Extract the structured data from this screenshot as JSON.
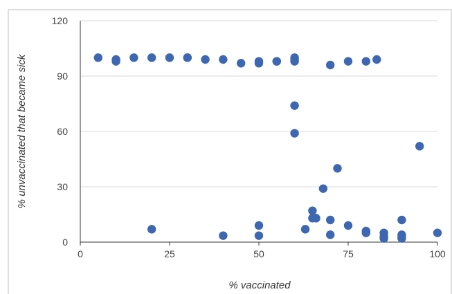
{
  "chart_data": {
    "type": "scatter",
    "title": "",
    "xlabel": "% vaccinated",
    "ylabel": "% unvaccinated that became sick",
    "xlim": [
      0,
      100
    ],
    "ylim": [
      0,
      120
    ],
    "x_ticks": [
      0,
      25,
      50,
      75,
      100
    ],
    "y_ticks": [
      0,
      30,
      60,
      90,
      120
    ],
    "x_tick_labels": [
      "0",
      "25",
      "50",
      "75",
      "100"
    ],
    "y_tick_labels": [
      "0",
      "30",
      "60",
      "90",
      "120"
    ],
    "grid": "horizontal",
    "legend": "none",
    "marker_color": "#3d67b1",
    "series": [
      {
        "points": [
          [
            5,
            100
          ],
          [
            10,
            99
          ],
          [
            10,
            98
          ],
          [
            15,
            100
          ],
          [
            20,
            100
          ],
          [
            25,
            100
          ],
          [
            30,
            100
          ],
          [
            30,
            100
          ],
          [
            35,
            99
          ],
          [
            40,
            99
          ],
          [
            45,
            97
          ],
          [
            50,
            98
          ],
          [
            50,
            97
          ],
          [
            55,
            98
          ],
          [
            55,
            98
          ],
          [
            60,
            100
          ],
          [
            60,
            99
          ],
          [
            60,
            98
          ],
          [
            70,
            96
          ],
          [
            75,
            98
          ],
          [
            80,
            98
          ],
          [
            83,
            99
          ],
          [
            60,
            74
          ],
          [
            60,
            59
          ],
          [
            95,
            52
          ],
          [
            72,
            40
          ],
          [
            68,
            29
          ],
          [
            65,
            17
          ],
          [
            65,
            13
          ],
          [
            66,
            13
          ],
          [
            70,
            12
          ],
          [
            90,
            12
          ],
          [
            75,
            9
          ],
          [
            63,
            7
          ],
          [
            20,
            7
          ],
          [
            50,
            9
          ],
          [
            80,
            6
          ],
          [
            80,
            5
          ],
          [
            85,
            5
          ],
          [
            40,
            3.5
          ],
          [
            50,
            3.5
          ],
          [
            70,
            4
          ],
          [
            85,
            3
          ],
          [
            85,
            2
          ],
          [
            90,
            4
          ],
          [
            90,
            3
          ],
          [
            90,
            2
          ],
          [
            100,
            5
          ]
        ]
      }
    ]
  }
}
